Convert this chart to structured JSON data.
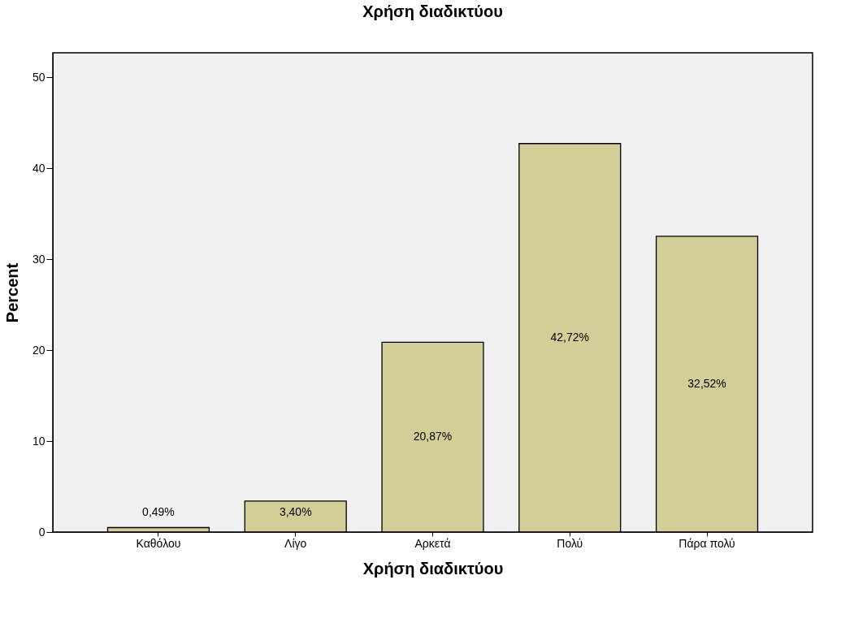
{
  "chart_data": {
    "type": "bar",
    "title": "Χρήση διαδικτύου",
    "xlabel": "Χρήση διαδικτύου",
    "ylabel": "Percent",
    "categories": [
      "Καθόλου",
      "Λίγο",
      "Αρκετά",
      "Πολύ",
      "Πάρα πολύ"
    ],
    "values": [
      0.49,
      3.4,
      20.87,
      42.72,
      32.52
    ],
    "value_labels": [
      "0,49%",
      "3,40%",
      "20,87%",
      "42,72%",
      "32,52%"
    ],
    "color": "#d3ce97",
    "ylim": [
      0,
      52.7
    ],
    "yticks": [
      0,
      10,
      20,
      30,
      40,
      50
    ],
    "grid": false
  }
}
